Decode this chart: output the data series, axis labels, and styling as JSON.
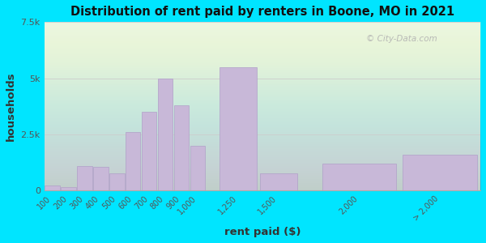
{
  "title": "Distribution of rent paid by renters in Boone, MO in 2021",
  "xlabel": "rent paid ($)",
  "ylabel": "households",
  "bar_color": "#c8b8d8",
  "bar_edge_color": "#b0a0c8",
  "background_outer": "#00e5ff",
  "background_inner_color": "#e8f5e2",
  "yticks": [
    0,
    2500,
    5000,
    7500
  ],
  "ytick_labels": [
    "0",
    "2.5k",
    "5k",
    "7.5k"
  ],
  "ylim": [
    0,
    7500
  ],
  "watermark": "© City-Data.com",
  "bar_centers": [
    100,
    200,
    300,
    400,
    500,
    600,
    700,
    800,
    900,
    1000,
    1250,
    1500,
    2000,
    2500
  ],
  "bar_widths": [
    100,
    100,
    100,
    100,
    100,
    100,
    100,
    100,
    100,
    100,
    250,
    250,
    500,
    500
  ],
  "values": [
    200,
    130,
    1100,
    1050,
    750,
    2600,
    3500,
    5000,
    3800,
    2000,
    5500,
    750,
    1200,
    1600
  ],
  "xtick_positions": [
    100,
    200,
    300,
    400,
    500,
    600,
    700,
    800,
    900,
    1000,
    1250,
    1500,
    2000,
    2500
  ],
  "xtick_labels": [
    "100",
    "200",
    "300",
    "400",
    "500",
    "600",
    "700",
    "800",
    "900",
    "1,000",
    "1,250",
    "1,500",
    "2,000",
    "> 2,000"
  ]
}
